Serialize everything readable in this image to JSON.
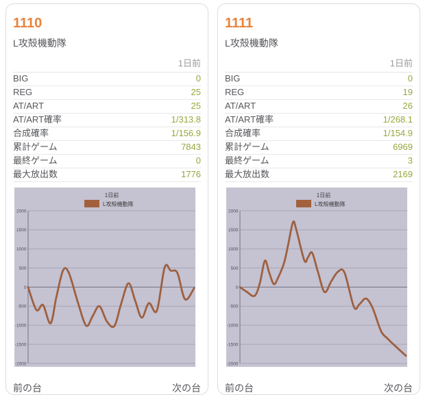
{
  "colors": {
    "accent_orange": "#e8823c",
    "value_green": "#94a83c",
    "chart_bg": "#c5c2d1",
    "chart_grid": "#a8a6b5",
    "chart_axis": "#757384",
    "chart_line": "#9d6040",
    "legend_swatch": "#a2613c",
    "chart_text": "#3c3c3c",
    "tick_text": "#4c4c55"
  },
  "cards": [
    {
      "machine_number": "1110",
      "machine_name": "L攻殻機動隊",
      "period_label": "1日前",
      "stats": [
        {
          "label": "BIG",
          "value": "0"
        },
        {
          "label": "REG",
          "value": "25"
        },
        {
          "label": "AT/ART",
          "value": "25"
        },
        {
          "label": "AT/ART確率",
          "value": "1/313.8"
        },
        {
          "label": "合成確率",
          "value": "1/156.9"
        },
        {
          "label": "累計ゲーム",
          "value": "7843"
        },
        {
          "label": "最終ゲーム",
          "value": "0"
        },
        {
          "label": "最大放出数",
          "value": "1776"
        }
      ],
      "footer": {
        "prev_label": "前の台",
        "next_label": "次の台"
      }
    },
    {
      "machine_number": "1111",
      "machine_name": "L攻殻機動隊",
      "period_label": "1日前",
      "stats": [
        {
          "label": "BIG",
          "value": "0"
        },
        {
          "label": "REG",
          "value": "19"
        },
        {
          "label": "AT/ART",
          "value": "26"
        },
        {
          "label": "AT/ART確率",
          "value": "1/268.1"
        },
        {
          "label": "合成確率",
          "value": "1/154.9"
        },
        {
          "label": "累計ゲーム",
          "value": "6969"
        },
        {
          "label": "最終ゲーム",
          "value": "3"
        },
        {
          "label": "最大放出数",
          "value": "2169"
        }
      ],
      "footer": {
        "prev_label": "前の台",
        "next_label": "次の台"
      }
    }
  ],
  "chart_data": [
    {
      "type": "line",
      "title": "1日前",
      "legend": [
        "L攻殻機動隊"
      ],
      "xlabel": "",
      "ylabel": "",
      "ylim": [
        -2000,
        2000
      ],
      "ytick_step": 500,
      "grid": "horizontal",
      "legend_position": "top-center",
      "series": [
        {
          "name": "L攻殻機動隊",
          "points": [
            [
              0,
              0
            ],
            [
              5,
              -600
            ],
            [
              9,
              -470
            ],
            [
              13.5,
              -950
            ],
            [
              17,
              -270
            ],
            [
              21,
              430
            ],
            [
              24.5,
              380
            ],
            [
              30,
              -400
            ],
            [
              35,
              -1010
            ],
            [
              39,
              -750
            ],
            [
              43,
              -500
            ],
            [
              47.5,
              -900
            ],
            [
              52,
              -1020
            ],
            [
              56,
              -450
            ],
            [
              60.5,
              100
            ],
            [
              64.5,
              -350
            ],
            [
              68.5,
              -800
            ],
            [
              72.8,
              -420
            ],
            [
              77.6,
              -620
            ],
            [
              82.3,
              520
            ],
            [
              86,
              430
            ],
            [
              90,
              370
            ],
            [
              94.6,
              -320
            ],
            [
              100,
              -30
            ]
          ]
        }
      ]
    },
    {
      "type": "line",
      "title": "1日前",
      "legend": [
        "L攻殻機動隊"
      ],
      "xlabel": "",
      "ylabel": "",
      "ylim": [
        -2000,
        2000
      ],
      "ytick_step": 500,
      "grid": "horizontal",
      "legend_position": "top-center",
      "series": [
        {
          "name": "L攻殻機動隊",
          "points": [
            [
              0,
              0
            ],
            [
              4,
              -120
            ],
            [
              8.8,
              -230
            ],
            [
              12,
              100
            ],
            [
              15,
              690
            ],
            [
              17.5,
              400
            ],
            [
              20.4,
              80
            ],
            [
              23,
              250
            ],
            [
              26.5,
              620
            ],
            [
              29,
              1100
            ],
            [
              32,
              1700
            ],
            [
              34,
              1500
            ],
            [
              38.8,
              700
            ],
            [
              41,
              780
            ],
            [
              43.5,
              900
            ],
            [
              47,
              400
            ],
            [
              51,
              -130
            ],
            [
              55,
              150
            ],
            [
              59,
              400
            ],
            [
              63,
              380
            ],
            [
              68.7,
              -520
            ],
            [
              72,
              -450
            ],
            [
              76,
              -300
            ],
            [
              80,
              -550
            ],
            [
              85,
              -1150
            ],
            [
              89,
              -1350
            ],
            [
              93,
              -1520
            ],
            [
              100,
              -1800
            ]
          ]
        }
      ]
    }
  ]
}
